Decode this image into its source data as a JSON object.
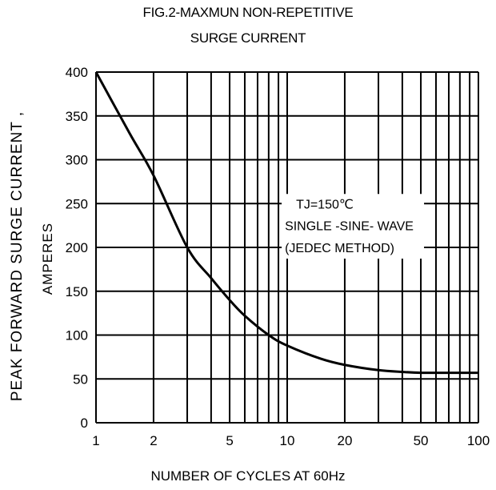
{
  "chart_data": {
    "type": "line",
    "title": "FIG.2-MAXMUN NON-REPETITIVE SURGE CURRENT",
    "title_lines": [
      "FIG.2-MAXMUN NON-REPETITIVE",
      "SURGE CURRENT"
    ],
    "xlabel": "NUMBER OF CYCLES AT 60Hz",
    "ylabel": "PEAK  FORWARD SURGE CURRENT ,",
    "ylabel_unit": "AMPERES",
    "x_scale": "log",
    "xlim": [
      1,
      100
    ],
    "ylim": [
      0,
      400
    ],
    "x_ticks": [
      1,
      2,
      5,
      10,
      20,
      50,
      100
    ],
    "x_tick_labels": [
      "1",
      "2",
      "5",
      "10",
      "20",
      "50",
      "100"
    ],
    "y_ticks": [
      0,
      50,
      100,
      150,
      200,
      250,
      300,
      350,
      400
    ],
    "y_tick_labels": [
      "0",
      "50",
      "100",
      "150",
      "200",
      "250",
      "300",
      "350",
      "400"
    ],
    "grid": true,
    "annotation": [
      "TJ=150℃",
      "SINGLE -SINE- WAVE",
      "(JEDEC METHOD)"
    ],
    "series": [
      {
        "x": [
          1,
          1.5,
          2,
          3,
          4,
          5,
          6,
          8,
          10,
          15,
          20,
          30,
          40,
          50,
          70,
          100
        ],
        "y": [
          400,
          330,
          282,
          200,
          165,
          140,
          122,
          100,
          88,
          73,
          66,
          60,
          58,
          57,
          57,
          57
        ]
      }
    ]
  }
}
